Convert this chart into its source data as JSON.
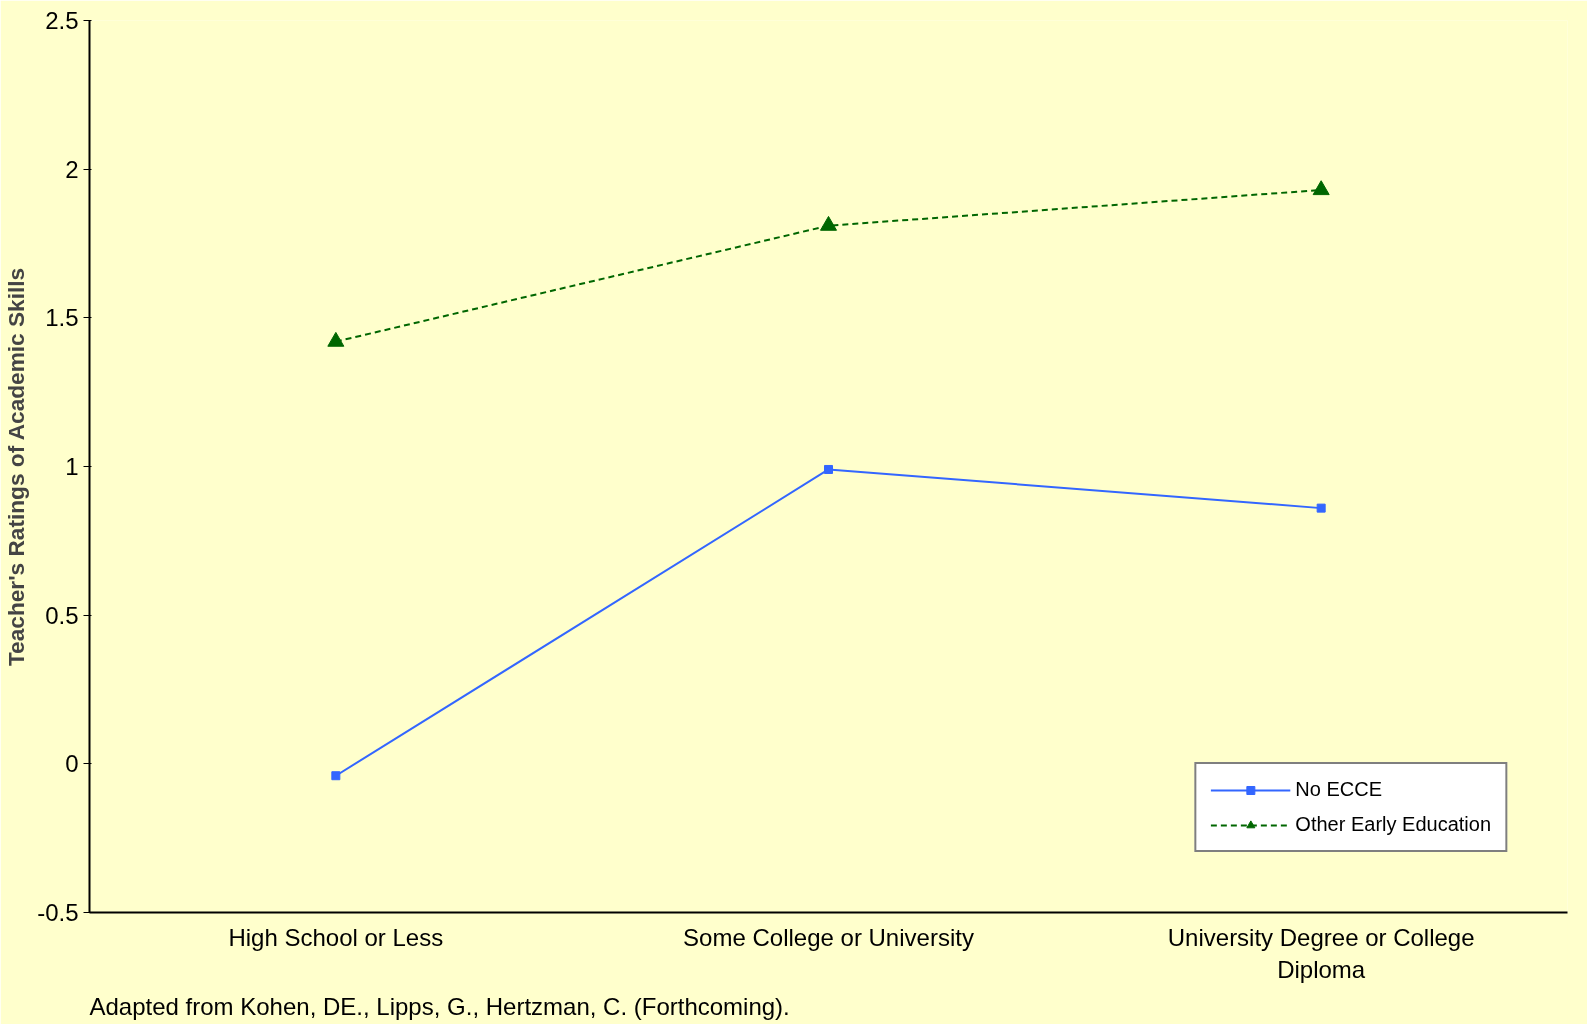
{
  "chart_data": {
    "type": "line",
    "ylabel": "Teacher's Ratings of Academic Skills",
    "categories": [
      "High School or Less",
      "Some College or University",
      "University Degree or College Diploma"
    ],
    "series": [
      {
        "name": "No ECCE",
        "color": "#3366ff",
        "values": [
          -0.04,
          0.99,
          0.86
        ],
        "marker": "square",
        "line_style": "solid"
      },
      {
        "name": "Other Early Education",
        "color": "#006600",
        "values": [
          1.42,
          1.81,
          1.93
        ],
        "marker": "triangle",
        "line_style": "dashed"
      }
    ],
    "ylim": [
      -0.5,
      2.5
    ],
    "yticks": [
      -0.5,
      0,
      0.5,
      1,
      1.5,
      2,
      2.5
    ],
    "grid": false,
    "legend": "bottom right",
    "annotations": [
      "Adapted from Kohen, DE., Lipps, G., Hertzman, C. (Forthcoming)."
    ]
  }
}
